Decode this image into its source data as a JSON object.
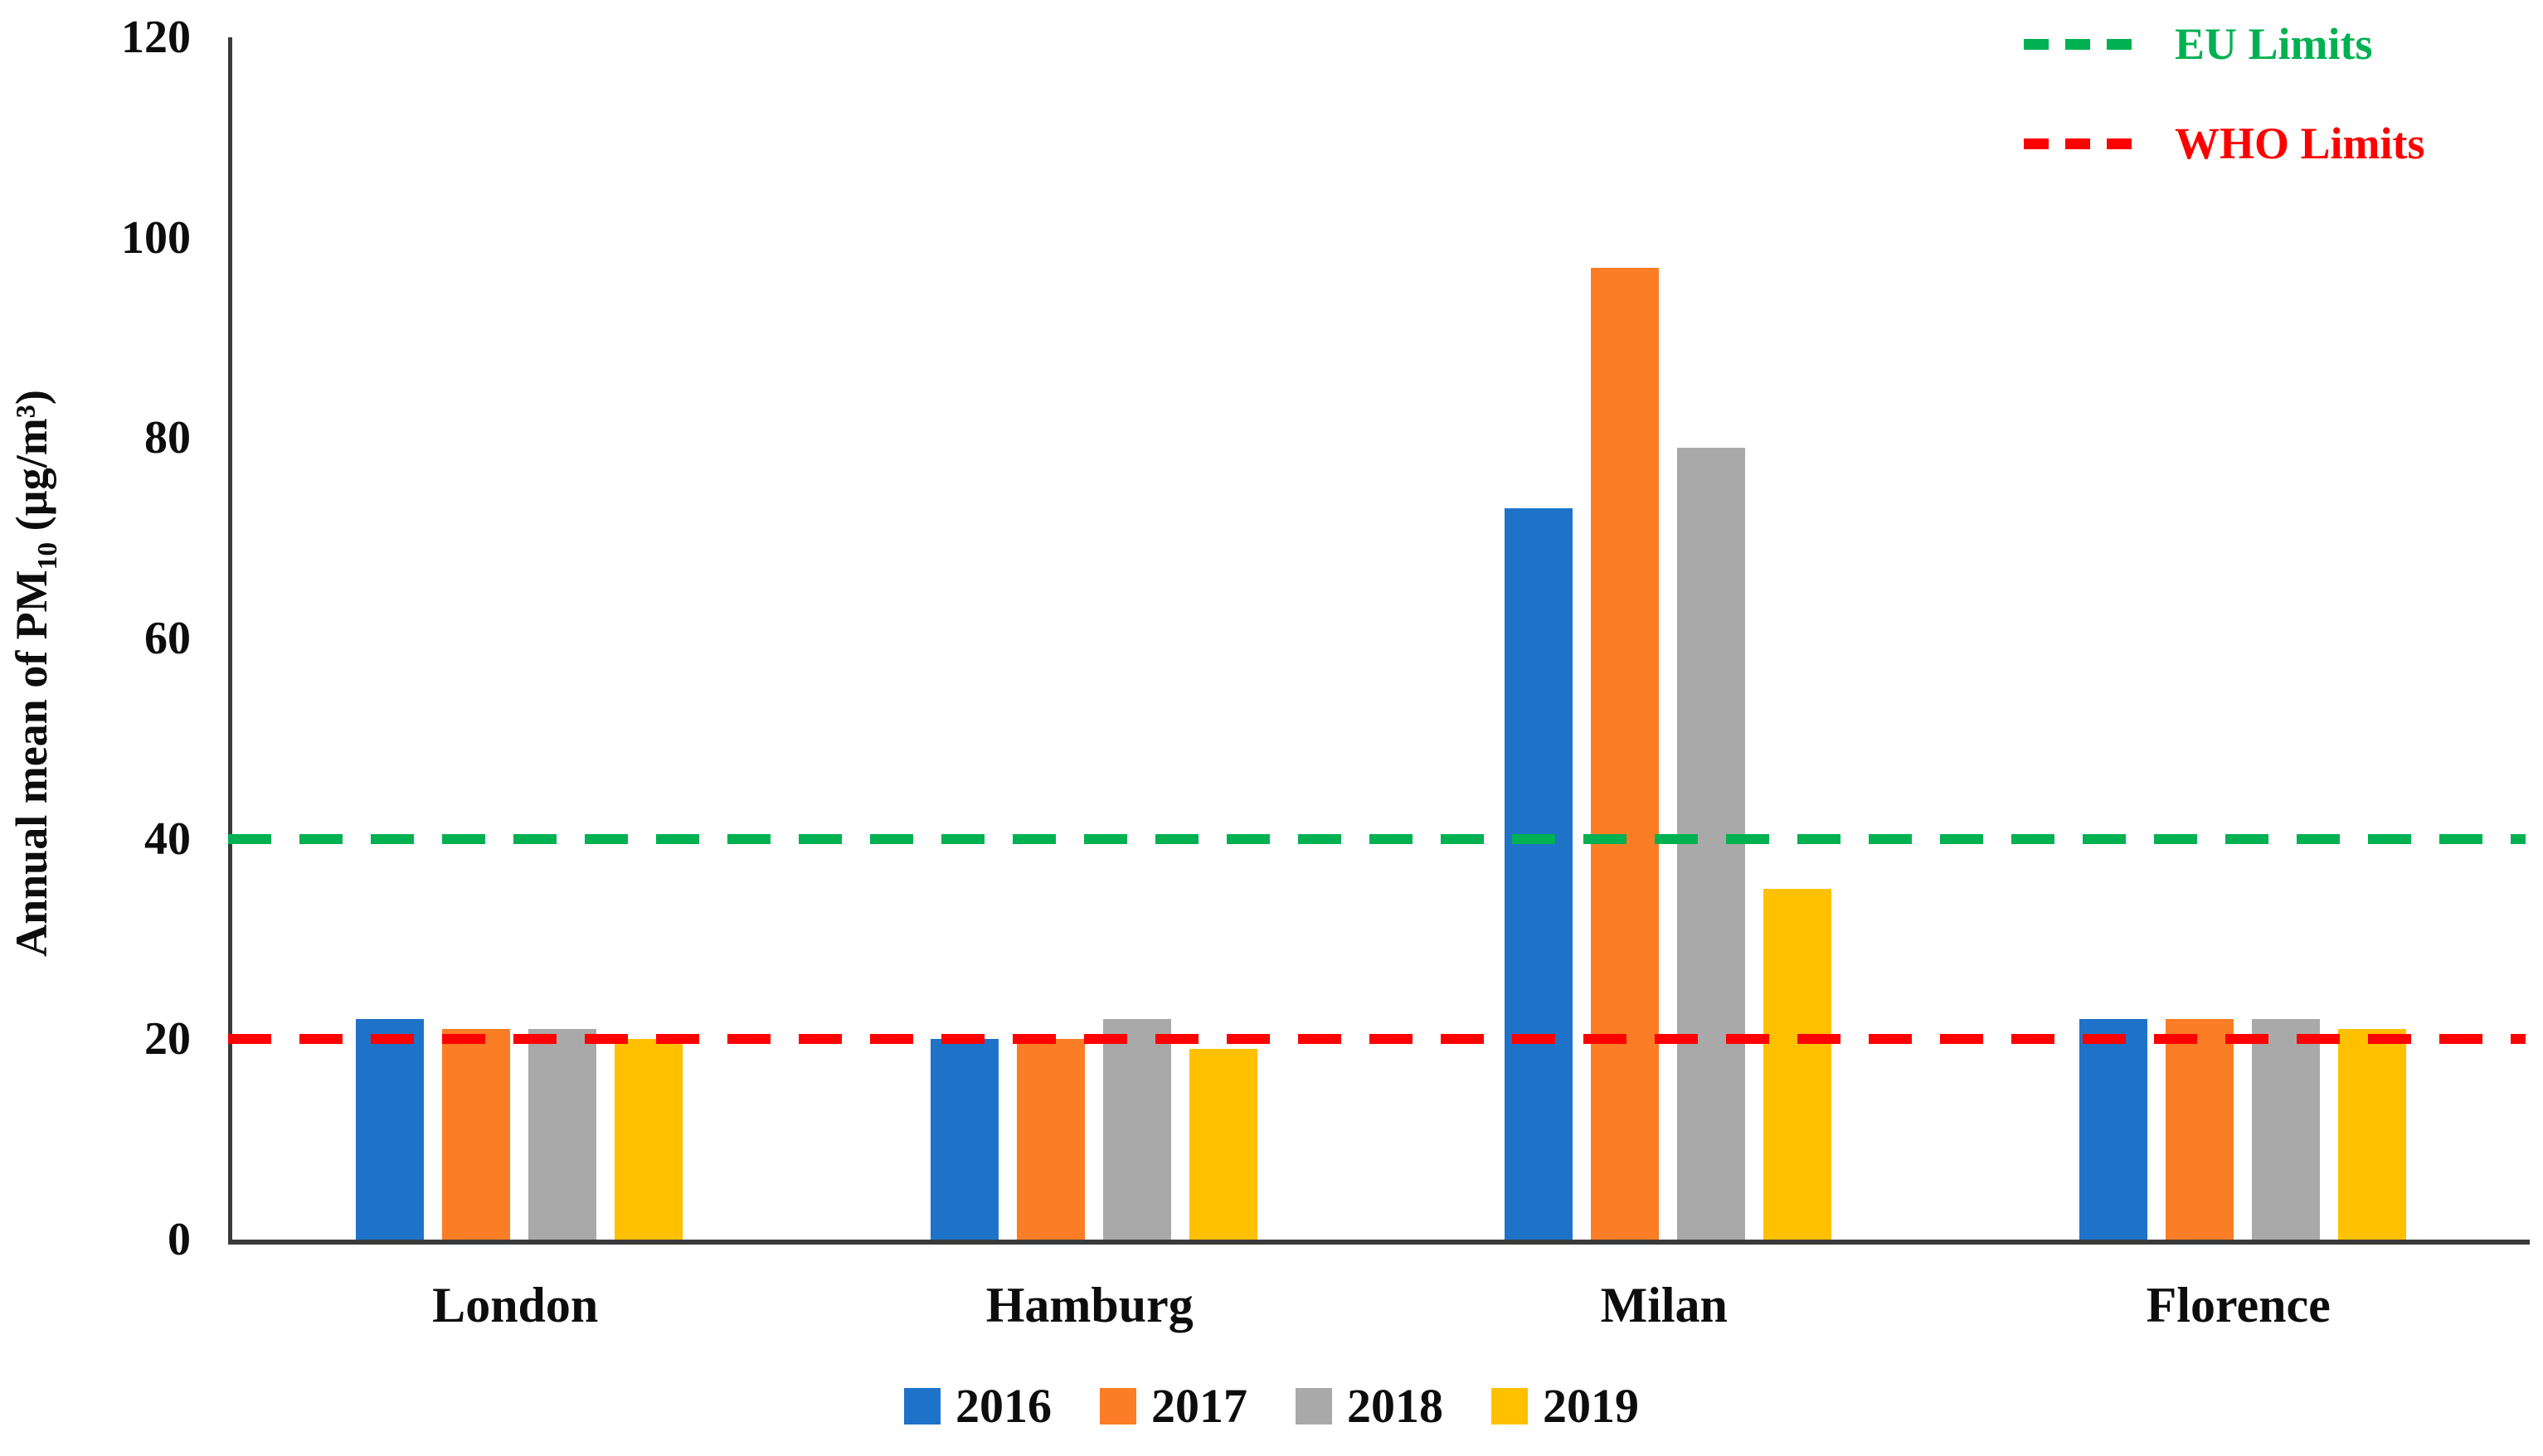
{
  "chart_data": {
    "type": "bar",
    "title": "",
    "categories": [
      "London",
      "Hamburg",
      "Milan",
      "Florence"
    ],
    "series": [
      {
        "name": "2016",
        "color": "#1e73c8",
        "values": [
          22,
          20,
          73,
          22
        ]
      },
      {
        "name": "2017",
        "color": "#fb7d26",
        "values": [
          21,
          20,
          97,
          22
        ]
      },
      {
        "name": "2018",
        "color": "#a9a9a9",
        "values": [
          21,
          22,
          79,
          22
        ]
      },
      {
        "name": "2019",
        "color": "#ffc000",
        "values": [
          20,
          19,
          35,
          21
        ]
      }
    ],
    "reference_lines": [
      {
        "name": "EU Limits",
        "value": 40,
        "color": "#00b152",
        "style": "dashed"
      },
      {
        "name": "WHO Limits",
        "value": 20,
        "color": "#fe0000",
        "style": "dashed"
      }
    ],
    "ylabel": "Annual mean of PM10 (µg/m³)",
    "ylabel_parts": {
      "prefix": "Annual mean of PM",
      "subscript": "10",
      "suffix": " (µg/m³)"
    },
    "xlabel": "",
    "ylim": [
      0,
      120
    ],
    "yticks": [
      0,
      20,
      40,
      60,
      80,
      100,
      120
    ],
    "grid": false,
    "legend_years_position": "bottom-center",
    "legend_limits_position": "top-right",
    "axis_color": "#3a3a3a",
    "background": "#ffffff"
  }
}
